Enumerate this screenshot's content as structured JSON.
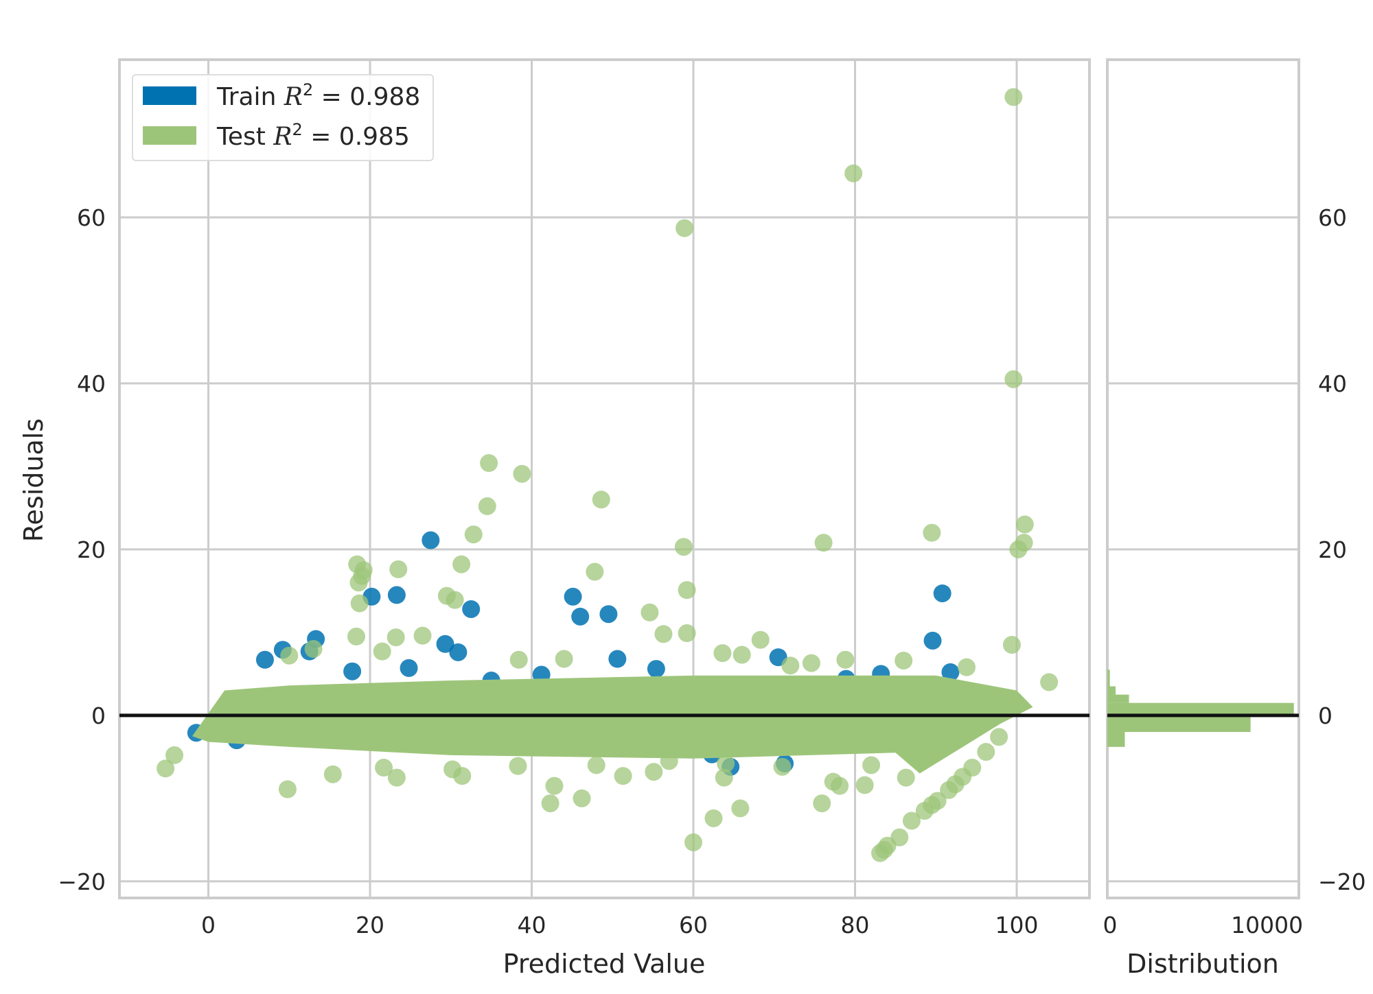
{
  "chart_data": {
    "type": "scatter",
    "title": "",
    "xlabel": "Predicted Value",
    "ylabel": "Residuals",
    "xlim": [
      -11,
      109
    ],
    "ylim": [
      -22,
      79
    ],
    "xticks": [
      "0",
      "20",
      "40",
      "60",
      "80",
      "100"
    ],
    "yticks": [
      "-20",
      "0",
      "20",
      "40",
      "60"
    ],
    "ytick_values": [
      -20,
      0,
      20,
      40,
      60
    ],
    "xtick_values": [
      0,
      20,
      40,
      60,
      80,
      100
    ],
    "grid": true,
    "legend_position": "top-left",
    "series": [
      {
        "name": "Train",
        "legend_prefix": "Train ",
        "r2_label": "= 0.988",
        "color": "#0072b2",
        "points": [
          [
            27.5,
            21.1
          ],
          [
            20.2,
            14.3
          ],
          [
            23.3,
            14.5
          ],
          [
            32.5,
            12.8
          ],
          [
            45.1,
            14.3
          ],
          [
            46.0,
            11.9
          ],
          [
            49.5,
            12.2
          ],
          [
            90.8,
            14.7
          ],
          [
            89.6,
            9.0
          ],
          [
            13.3,
            9.2
          ],
          [
            9.2,
            7.9
          ],
          [
            7.0,
            6.7
          ],
          [
            29.3,
            8.6
          ],
          [
            50.6,
            6.8
          ],
          [
            70.5,
            7.0
          ],
          [
            30.9,
            7.6
          ],
          [
            12.5,
            7.7
          ],
          [
            3.5,
            -3.0
          ],
          [
            -1.5,
            -2.1
          ],
          [
            64.6,
            -6.2
          ],
          [
            83.2,
            5.0
          ],
          [
            71.3,
            -5.8
          ],
          [
            35.0,
            4.2
          ],
          [
            55.4,
            5.6
          ],
          [
            91.8,
            5.2
          ],
          [
            24.8,
            5.7
          ],
          [
            41.2,
            4.9
          ],
          [
            62.3,
            -4.7
          ],
          [
            17.8,
            5.3
          ],
          [
            78.9,
            4.4
          ]
        ]
      },
      {
        "name": "Test",
        "legend_prefix": "Test ",
        "r2_label": "= 0.985",
        "color": "#9dc57a",
        "points": [
          [
            99.6,
            74.5
          ],
          [
            79.8,
            65.3
          ],
          [
            58.9,
            58.7
          ],
          [
            99.6,
            40.5
          ],
          [
            34.7,
            30.4
          ],
          [
            38.8,
            29.1
          ],
          [
            48.6,
            26.0
          ],
          [
            34.5,
            25.2
          ],
          [
            101.0,
            23.0
          ],
          [
            89.5,
            22.0
          ],
          [
            32.8,
            21.8
          ],
          [
            76.1,
            20.8
          ],
          [
            100.9,
            20.8
          ],
          [
            58.8,
            20.3
          ],
          [
            100.2,
            20.0
          ],
          [
            18.4,
            18.2
          ],
          [
            31.3,
            18.2
          ],
          [
            19.2,
            17.5
          ],
          [
            23.5,
            17.6
          ],
          [
            47.8,
            17.3
          ],
          [
            19.0,
            16.8
          ],
          [
            18.6,
            16.0
          ],
          [
            59.2,
            15.1
          ],
          [
            29.5,
            14.4
          ],
          [
            30.5,
            13.9
          ],
          [
            18.7,
            13.5
          ],
          [
            54.6,
            12.4
          ],
          [
            56.3,
            9.8
          ],
          [
            59.2,
            9.9
          ],
          [
            68.3,
            9.1
          ],
          [
            26.5,
            9.6
          ],
          [
            23.2,
            9.4
          ],
          [
            18.3,
            9.5
          ],
          [
            99.4,
            8.5
          ],
          [
            13.0,
            8.0
          ],
          [
            21.5,
            7.7
          ],
          [
            10.0,
            7.2
          ],
          [
            38.4,
            6.7
          ],
          [
            44.0,
            6.8
          ],
          [
            63.6,
            7.5
          ],
          [
            66.0,
            7.3
          ],
          [
            72.0,
            6.0
          ],
          [
            74.6,
            6.3
          ],
          [
            78.8,
            6.7
          ],
          [
            86.0,
            6.6
          ],
          [
            93.8,
            5.8
          ],
          [
            104.0,
            4.0
          ],
          [
            -5.3,
            -6.4
          ],
          [
            -4.2,
            -4.8
          ],
          [
            9.8,
            -8.9
          ],
          [
            15.4,
            -7.1
          ],
          [
            21.7,
            -6.3
          ],
          [
            23.3,
            -7.5
          ],
          [
            30.2,
            -6.5
          ],
          [
            31.4,
            -7.3
          ],
          [
            38.3,
            -6.1
          ],
          [
            42.8,
            -8.5
          ],
          [
            42.3,
            -10.6
          ],
          [
            46.2,
            -10.0
          ],
          [
            51.3,
            -7.3
          ],
          [
            55.1,
            -6.8
          ],
          [
            60.0,
            -15.3
          ],
          [
            62.5,
            -12.4
          ],
          [
            63.8,
            -7.5
          ],
          [
            65.8,
            -11.2
          ],
          [
            75.9,
            -10.6
          ],
          [
            77.3,
            -8.0
          ],
          [
            78.1,
            -8.5
          ],
          [
            81.2,
            -8.4
          ],
          [
            83.1,
            -16.6
          ],
          [
            83.6,
            -16.2
          ],
          [
            84.0,
            -15.7
          ],
          [
            85.5,
            -14.7
          ],
          [
            87.0,
            -12.7
          ],
          [
            88.6,
            -11.5
          ],
          [
            89.5,
            -10.8
          ],
          [
            90.2,
            -10.3
          ],
          [
            91.6,
            -9.0
          ],
          [
            92.4,
            -8.3
          ],
          [
            93.3,
            -7.4
          ],
          [
            94.5,
            -6.3
          ],
          [
            96.2,
            -4.4
          ],
          [
            97.8,
            -2.6
          ],
          [
            86.3,
            -7.5
          ],
          [
            82.0,
            -6.0
          ],
          [
            71.0,
            -6.2
          ],
          [
            64.0,
            -5.8
          ],
          [
            57.0,
            -5.5
          ],
          [
            48.0,
            -6.0
          ]
        ]
      }
    ],
    "zero_line": 0,
    "histogram": {
      "xlabel": "Distribution",
      "xticks": [
        "0",
        "10000"
      ],
      "xtick_values": [
        0,
        10000
      ],
      "xlim": [
        0,
        11500
      ],
      "color": "#9dc57a",
      "bins": [
        {
          "y0": 4.5,
          "y1": 5.5,
          "count": 150
        },
        {
          "y0": 3.5,
          "y1": 4.5,
          "count": 150
        },
        {
          "y0": 2.5,
          "y1": 3.5,
          "count": 500
        },
        {
          "y0": 1.5,
          "y1": 2.5,
          "count": 1300
        },
        {
          "y0": 0.0,
          "y1": 1.5,
          "count": 11200
        },
        {
          "y0": -2.0,
          "y1": 0.0,
          "count": 8600
        },
        {
          "y0": -3.8,
          "y1": -2.0,
          "count": 1050
        }
      ]
    }
  }
}
